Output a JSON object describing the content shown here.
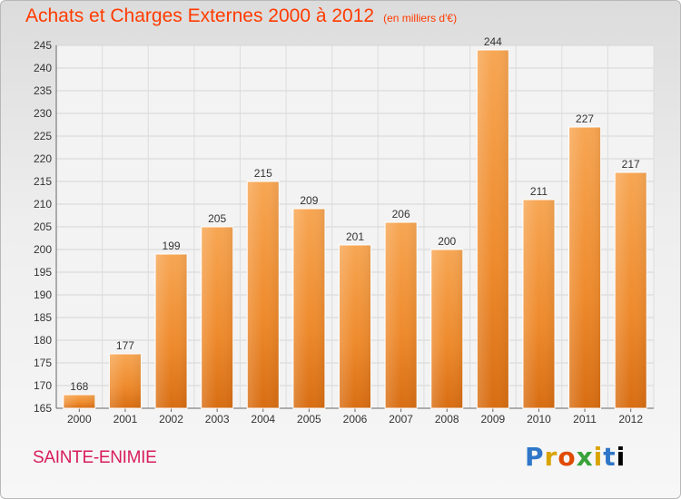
{
  "chart_data": {
    "type": "bar",
    "title": "Achats et Charges Externes 2000 à 2012",
    "subtitle": "(en milliers d'€)",
    "categories": [
      "2000",
      "2001",
      "2002",
      "2003",
      "2004",
      "2005",
      "2006",
      "2007",
      "2008",
      "2009",
      "2010",
      "2011",
      "2012"
    ],
    "values": [
      168,
      177,
      199,
      205,
      215,
      209,
      201,
      206,
      200,
      244,
      211,
      227,
      217
    ],
    "ylim": [
      165,
      245
    ],
    "yticks": [
      165,
      170,
      175,
      180,
      185,
      190,
      195,
      200,
      205,
      210,
      215,
      220,
      225,
      230,
      235,
      240,
      245
    ],
    "grid": true,
    "bar_color": "#f29a3c"
  },
  "footer": {
    "city": "SAINTE-ENIMIE",
    "logo": "Proxiti"
  }
}
